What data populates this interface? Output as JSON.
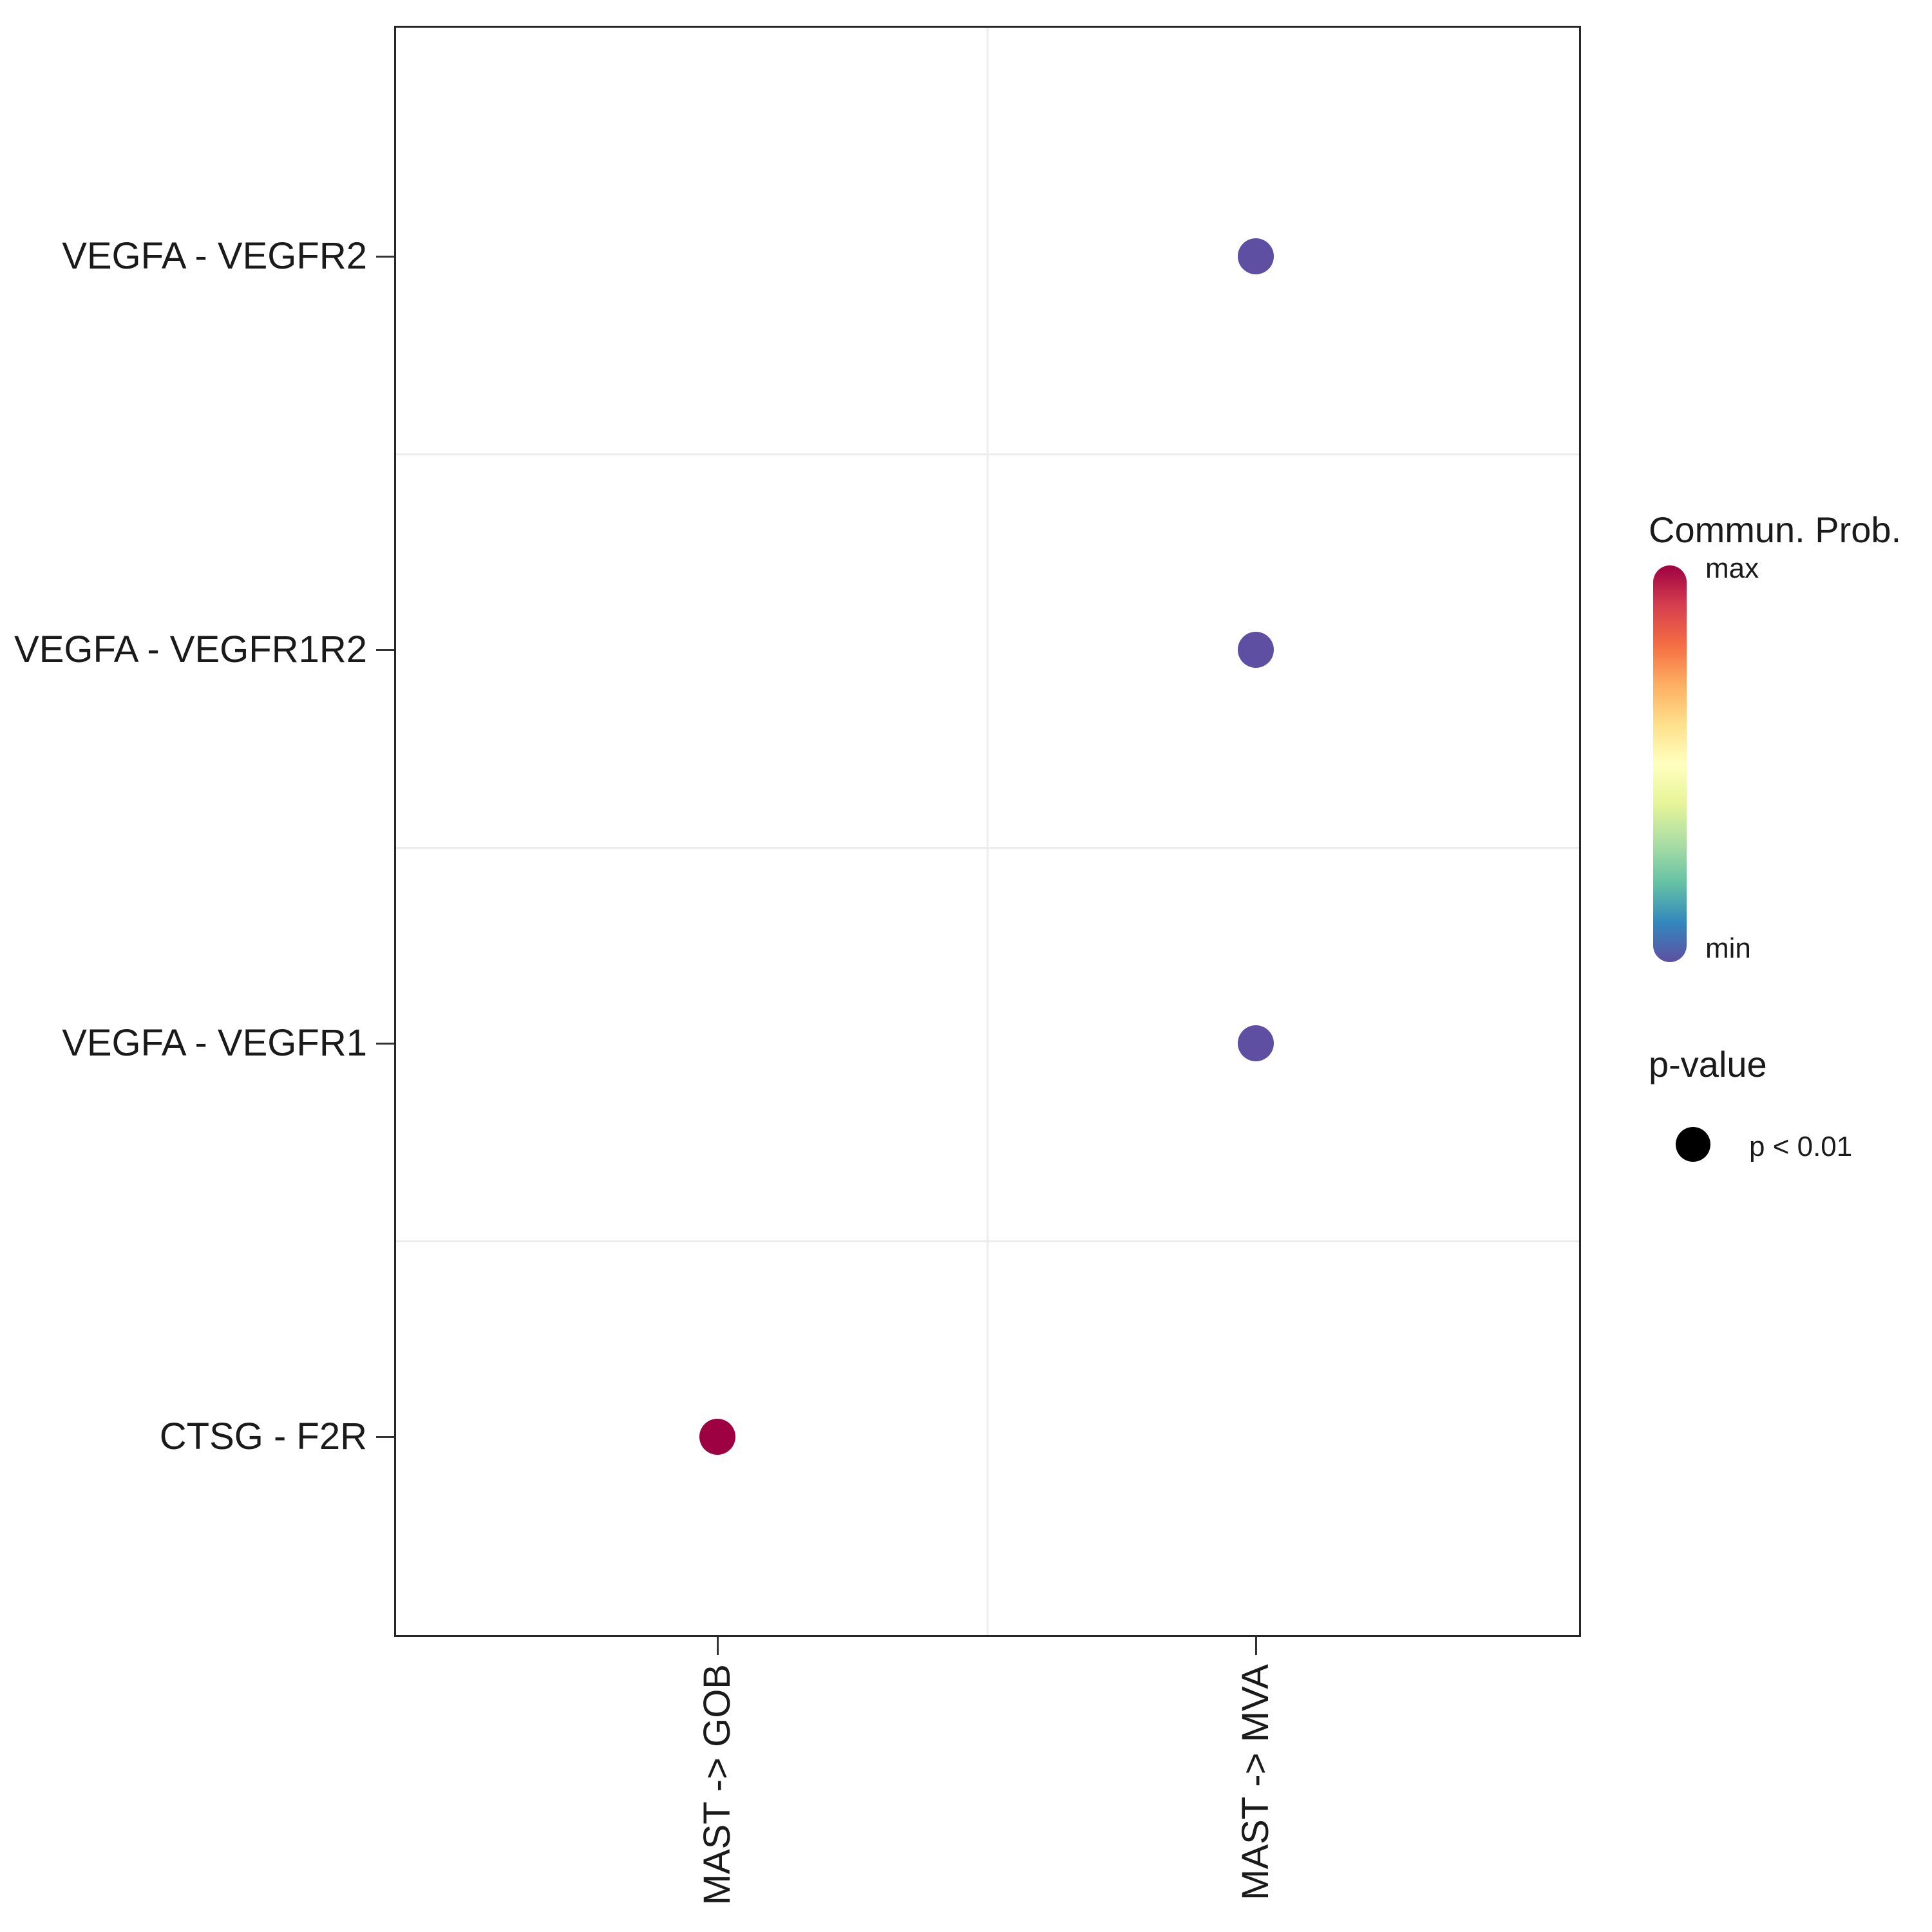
{
  "chart_data": {
    "type": "scatter",
    "title": "",
    "xlabel": "",
    "ylabel": "",
    "grid": "minor category boundaries only",
    "legend_position": "right",
    "x_categories": [
      "MAST -> GOB",
      "MAST -> MVA"
    ],
    "y_categories": [
      "VEGFA - VEGFR2",
      "VEGFA - VEGFR1R2",
      "VEGFA - VEGFR1",
      "CTSG - F2R"
    ],
    "points": [
      {
        "x": "MAST -> MVA",
        "y": "VEGFA - VEGFR2",
        "commun_prob": "min",
        "p_value": "p < 0.01",
        "color": "#5E4FA2"
      },
      {
        "x": "MAST -> MVA",
        "y": "VEGFA - VEGFR1R2",
        "commun_prob": "min",
        "p_value": "p < 0.01",
        "color": "#5E4FA2"
      },
      {
        "x": "MAST -> MVA",
        "y": "VEGFA - VEGFR1",
        "commun_prob": "min",
        "p_value": "p < 0.01",
        "color": "#5E4FA2"
      },
      {
        "x": "MAST -> GOB",
        "y": "CTSG - F2R",
        "commun_prob": "max",
        "p_value": "p < 0.01",
        "color": "#9E0142"
      }
    ],
    "legend": {
      "colorbar_title": "Commun. Prob.",
      "colorbar_max_label": "max",
      "colorbar_min_label": "min",
      "colorbar_gradient": [
        "#9E0142",
        "#D53E4F",
        "#F46D43",
        "#FDAE61",
        "#FEE08B",
        "#FFFFBF",
        "#E6F598",
        "#ABDDA4",
        "#66C2A5",
        "#3288BD",
        "#5E4FA2"
      ],
      "size_title": "p-value",
      "size_items": [
        {
          "label": "p < 0.01",
          "color": "#000000"
        }
      ]
    },
    "colors": {
      "panel_border": "#262626",
      "gridline": "#ececec",
      "axis_text": "#1a1a1a"
    }
  }
}
